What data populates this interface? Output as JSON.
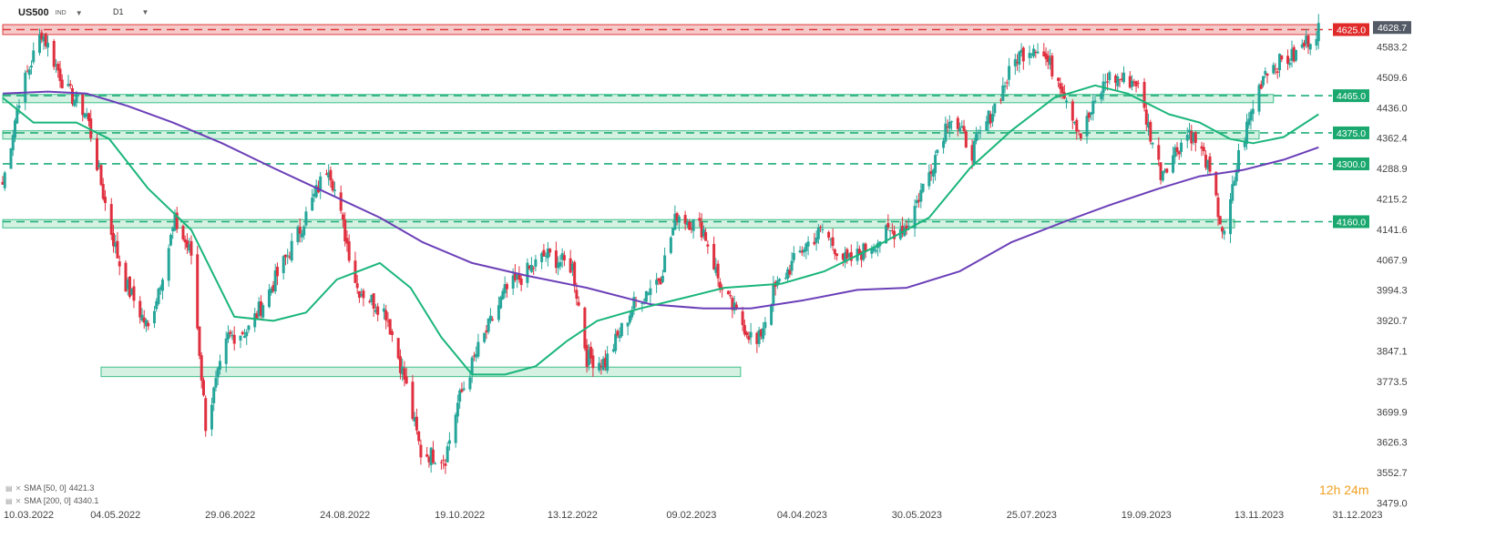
{
  "header": {
    "symbol": "US500",
    "symbol_type": "IND",
    "timeframe": "D1"
  },
  "indicators": [
    {
      "label": "SMA [50, 0]",
      "value": "4421.3"
    },
    {
      "label": "SMA [200, 0]",
      "value": "4340.1"
    }
  ],
  "timer": {
    "hours": "12",
    "hours_unit": "h",
    "minutes": "24",
    "minutes_unit": "m"
  },
  "colors": {
    "up": "#26a69a",
    "down": "#e0303f",
    "sma50": "#19b57a",
    "sma200": "#6b3fb8",
    "zone": "#3fbf8a",
    "resistance": "#e03b3b"
  },
  "chart_data": {
    "type": "candlestick",
    "ylim": [
      3479.0,
      4650.0
    ],
    "yticks": [
      "4583.2",
      "4509.6",
      "4436.0",
      "4362.4",
      "4288.9",
      "4215.2",
      "4141.6",
      "4067.9",
      "3994.3",
      "3920.7",
      "3847.1",
      "3773.5",
      "3699.9",
      "3626.3",
      "3552.7",
      "3479.0"
    ],
    "xticks": [
      "10.03.2022",
      "04.05.2022",
      "29.06.2022",
      "24.08.2022",
      "19.10.2022",
      "13.12.2022",
      "09.02.2023",
      "04.04.2023",
      "30.05.2023",
      "25.07.2023",
      "19.09.2023",
      "13.11.2023",
      "31.12.2023"
    ],
    "last_price": "4628.7",
    "resistance": {
      "level": 4625.0,
      "label": "4625.0"
    },
    "levels": [
      {
        "value": 4465.0,
        "label": "4465.0"
      },
      {
        "value": 4375.0,
        "label": "4375.0"
      },
      {
        "value": 4300.0,
        "label": "4300.0"
      },
      {
        "value": 4160.0,
        "label": "4160.0"
      }
    ],
    "zones": [
      {
        "from": "10.03.2022",
        "to": "20.11.2023",
        "low": 4448,
        "high": 4468
      },
      {
        "from": "10.03.2022",
        "to": "13.11.2023",
        "low": 4360,
        "high": 4380
      },
      {
        "from": "10.03.2022",
        "to": "01.11.2023",
        "low": 4145,
        "high": 4165
      },
      {
        "from": "27.04.2022",
        "to": "05.03.2023",
        "low": 3785,
        "high": 3808
      }
    ],
    "keypoints": [
      [
        "2022-03-10",
        4250
      ],
      [
        "2022-03-18",
        4460
      ],
      [
        "2022-03-29",
        4620
      ],
      [
        "2022-04-10",
        4480
      ],
      [
        "2022-04-20",
        4420
      ],
      [
        "2022-05-01",
        4155
      ],
      [
        "2022-05-08",
        4020
      ],
      [
        "2022-05-20",
        3900
      ],
      [
        "2022-06-02",
        4160
      ],
      [
        "2022-06-10",
        4080
      ],
      [
        "2022-06-17",
        3670
      ],
      [
        "2022-06-28",
        3880
      ],
      [
        "2022-07-08",
        3900
      ],
      [
        "2022-07-20",
        4010
      ],
      [
        "2022-08-01",
        4130
      ],
      [
        "2022-08-16",
        4300
      ],
      [
        "2022-08-30",
        4000
      ],
      [
        "2022-09-13",
        3940
      ],
      [
        "2022-09-22",
        3780
      ],
      [
        "2022-09-30",
        3600
      ],
      [
        "2022-10-12",
        3590
      ],
      [
        "2022-10-18",
        3720
      ],
      [
        "2022-10-27",
        3840
      ],
      [
        "2022-11-10",
        3990
      ],
      [
        "2022-11-30",
        4080
      ],
      [
        "2022-12-13",
        4050
      ],
      [
        "2022-12-20",
        3830
      ],
      [
        "2022-12-29",
        3820
      ],
      [
        "2023-01-12",
        3960
      ],
      [
        "2023-01-25",
        4030
      ],
      [
        "2023-02-02",
        4180
      ],
      [
        "2023-02-15",
        4140
      ],
      [
        "2023-02-24",
        3990
      ],
      [
        "2023-03-13",
        3860
      ],
      [
        "2023-03-21",
        3990
      ],
      [
        "2023-04-05",
        4100
      ],
      [
        "2023-04-14",
        4140
      ],
      [
        "2023-04-26",
        4060
      ],
      [
        "2023-05-15",
        4130
      ],
      [
        "2023-05-25",
        4150
      ],
      [
        "2023-06-05",
        4280
      ],
      [
        "2023-06-15",
        4420
      ],
      [
        "2023-06-26",
        4330
      ],
      [
        "2023-07-06",
        4430
      ],
      [
        "2023-07-18",
        4560
      ],
      [
        "2023-07-27",
        4590
      ],
      [
        "2023-08-08",
        4500
      ],
      [
        "2023-08-18",
        4370
      ],
      [
        "2023-08-31",
        4510
      ],
      [
        "2023-09-14",
        4500
      ],
      [
        "2023-09-26",
        4280
      ],
      [
        "2023-10-10",
        4380
      ],
      [
        "2023-10-18",
        4310
      ],
      [
        "2023-10-27",
        4120
      ],
      [
        "2023-11-03",
        4320
      ],
      [
        "2023-11-10",
        4440
      ],
      [
        "2023-11-16",
        4530
      ],
      [
        "2023-11-30",
        4560
      ],
      [
        "2023-12-12",
        4630
      ]
    ],
    "sma50_points": [
      [
        "2022-03-10",
        4460
      ],
      [
        "2022-03-25",
        4400
      ],
      [
        "2022-04-15",
        4400
      ],
      [
        "2022-05-01",
        4360
      ],
      [
        "2022-05-20",
        4240
      ],
      [
        "2022-06-10",
        4140
      ],
      [
        "2022-07-01",
        3930
      ],
      [
        "2022-07-20",
        3920
      ],
      [
        "2022-08-05",
        3940
      ],
      [
        "2022-08-20",
        4020
      ],
      [
        "2022-09-10",
        4060
      ],
      [
        "2022-09-25",
        4000
      ],
      [
        "2022-10-10",
        3880
      ],
      [
        "2022-10-25",
        3790
      ],
      [
        "2022-11-10",
        3790
      ],
      [
        "2022-11-25",
        3810
      ],
      [
        "2022-12-10",
        3870
      ],
      [
        "2022-12-25",
        3920
      ],
      [
        "2023-01-15",
        3950
      ],
      [
        "2023-02-05",
        3975
      ],
      [
        "2023-02-25",
        4000
      ],
      [
        "2023-03-25",
        4010
      ],
      [
        "2023-04-15",
        4040
      ],
      [
        "2023-05-10",
        4100
      ],
      [
        "2023-06-05",
        4170
      ],
      [
        "2023-06-25",
        4290
      ],
      [
        "2023-07-15",
        4380
      ],
      [
        "2023-08-05",
        4460
      ],
      [
        "2023-08-25",
        4490
      ],
      [
        "2023-09-10",
        4470
      ],
      [
        "2023-09-30",
        4420
      ],
      [
        "2023-10-15",
        4400
      ],
      [
        "2023-10-30",
        4360
      ],
      [
        "2023-11-10",
        4350
      ],
      [
        "2023-11-25",
        4365
      ],
      [
        "2023-12-12",
        4420
      ]
    ],
    "sma200_points": [
      [
        "2022-03-10",
        4470
      ],
      [
        "2022-04-01",
        4475
      ],
      [
        "2022-04-20",
        4470
      ],
      [
        "2022-05-10",
        4440
      ],
      [
        "2022-06-01",
        4400
      ],
      [
        "2022-06-25",
        4350
      ],
      [
        "2022-07-20",
        4290
      ],
      [
        "2022-08-15",
        4230
      ],
      [
        "2022-09-10",
        4170
      ],
      [
        "2022-10-01",
        4110
      ],
      [
        "2022-10-25",
        4060
      ],
      [
        "2022-11-20",
        4030
      ],
      [
        "2022-12-20",
        4000
      ],
      [
        "2023-01-20",
        3960
      ],
      [
        "2023-02-15",
        3950
      ],
      [
        "2023-03-10",
        3950
      ],
      [
        "2023-04-05",
        3970
      ],
      [
        "2023-05-01",
        3995
      ],
      [
        "2023-05-25",
        4000
      ],
      [
        "2023-06-20",
        4040
      ],
      [
        "2023-07-15",
        4110
      ],
      [
        "2023-08-10",
        4160
      ],
      [
        "2023-09-01",
        4200
      ],
      [
        "2023-09-25",
        4240
      ],
      [
        "2023-10-15",
        4270
      ],
      [
        "2023-11-05",
        4285
      ],
      [
        "2023-11-25",
        4310
      ],
      [
        "2023-12-12",
        4340
      ]
    ]
  }
}
